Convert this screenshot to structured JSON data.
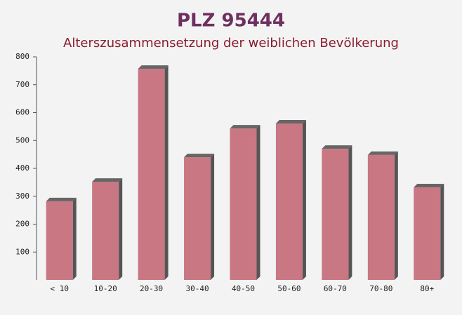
{
  "chart_data": {
    "type": "bar",
    "title": "PLZ 95444",
    "subtitle": "Alterszusammensetzung der weiblichen Bevölkerung",
    "categories": [
      "< 10",
      "10-20",
      "20-30",
      "30-40",
      "40-50",
      "50-60",
      "60-70",
      "70-80",
      "80+"
    ],
    "values": [
      282,
      352,
      757,
      440,
      543,
      561,
      470,
      448,
      332
    ],
    "color": "#c0606e",
    "ylim": [
      0,
      800
    ],
    "yticks": [
      100,
      200,
      300,
      400,
      500,
      600,
      700,
      800
    ]
  }
}
